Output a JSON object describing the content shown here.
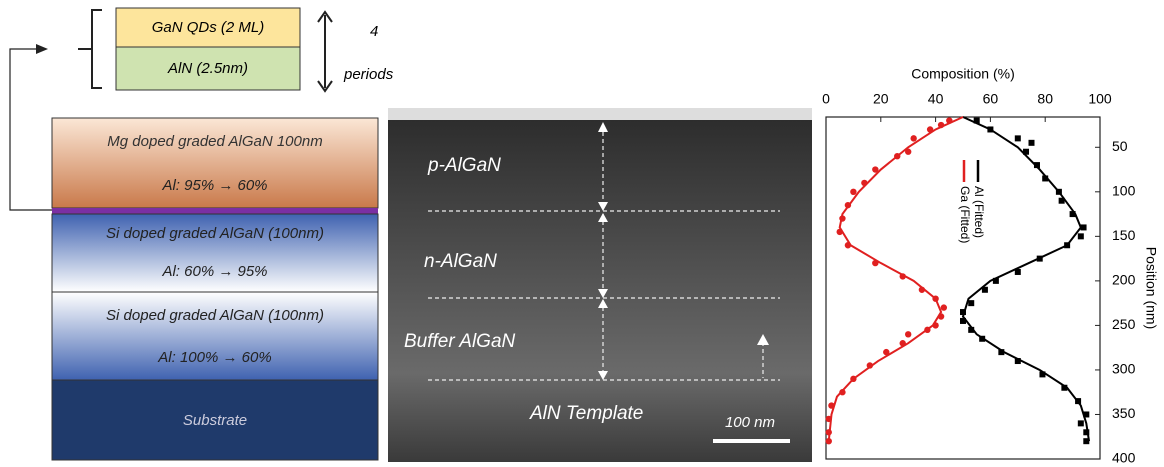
{
  "diagram": {
    "qd": "GaN QDs (2 ML)",
    "aln": "AlN (2.5nm)",
    "count": "4",
    "periods": "periods",
    "layers": [
      {
        "name": "Mg doped graded AlGaN 100nm",
        "al": "Al: 95% → 60%"
      },
      {
        "name": "Si doped graded AlGaN (100nm)",
        "al": "Al: 60% → 95%"
      },
      {
        "name": "Si doped graded AlGaN (100nm)",
        "al": "Al: 100% → 60%"
      }
    ],
    "substrate": "Substrate"
  },
  "tem": {
    "labels": [
      "p-AlGaN",
      "n-AlGaN",
      "Buffer AlGaN",
      "AlN Template"
    ],
    "scale": "100 nm"
  },
  "chart_data": {
    "type": "scatter",
    "x_label": "Composition (%)",
    "y_label": "Position (nm)",
    "xlim": [
      0,
      100
    ],
    "xticks": [
      0,
      20,
      40,
      60,
      80,
      100
    ],
    "ylim": [
      16,
      400
    ],
    "yticks": [
      50,
      100,
      150,
      200,
      250,
      300,
      350,
      400
    ],
    "y_inverted": true,
    "series": [
      {
        "name": "Al (Fitted)",
        "color": "#000000",
        "marker": "square",
        "y": [
          20,
          30,
          40,
          45,
          55,
          70,
          85,
          100,
          110,
          125,
          140,
          150,
          160,
          175,
          190,
          200,
          210,
          225,
          235,
          245,
          255,
          265,
          280,
          290,
          305,
          320,
          335,
          350,
          360,
          370,
          380
        ],
        "x": [
          55,
          60,
          70,
          75,
          73,
          77,
          80,
          85,
          86,
          90,
          94,
          93,
          88,
          78,
          70,
          62,
          58,
          53,
          50,
          50,
          53,
          57,
          64,
          70,
          79,
          87,
          92,
          95,
          93,
          95,
          95
        ],
        "fit_y": [
          16,
          30,
          50,
          75,
          100,
          125,
          140,
          160,
          180,
          200,
          220,
          240,
          260,
          280,
          300,
          320,
          340,
          360,
          380
        ],
        "fit_x": [
          50,
          60,
          70,
          78,
          85,
          91,
          93,
          88,
          74,
          60,
          52,
          50,
          55,
          65,
          78,
          88,
          93,
          95,
          96
        ]
      },
      {
        "name": "Ga (Fitted)",
        "color": "#e02020",
        "marker": "circle",
        "y": [
          20,
          25,
          30,
          40,
          55,
          60,
          75,
          90,
          100,
          115,
          130,
          145,
          160,
          180,
          195,
          210,
          220,
          230,
          240,
          250,
          255,
          260,
          270,
          280,
          295,
          310,
          325,
          340,
          355,
          370,
          380
        ],
        "x": [
          45,
          42,
          38,
          32,
          30,
          26,
          18,
          14,
          10,
          8,
          6,
          5,
          8,
          18,
          28,
          35,
          40,
          43,
          42,
          40,
          37,
          30,
          28,
          22,
          16,
          10,
          6,
          2,
          1,
          1,
          1
        ],
        "fit_y": [
          16,
          30,
          50,
          75,
          100,
          125,
          140,
          160,
          180,
          200,
          220,
          235,
          250,
          270,
          290,
          310,
          330,
          350,
          380
        ],
        "fit_x": [
          50,
          40,
          30,
          20,
          12,
          6,
          5,
          9,
          20,
          32,
          40,
          42,
          39,
          30,
          19,
          10,
          4,
          2,
          1
        ]
      }
    ]
  }
}
